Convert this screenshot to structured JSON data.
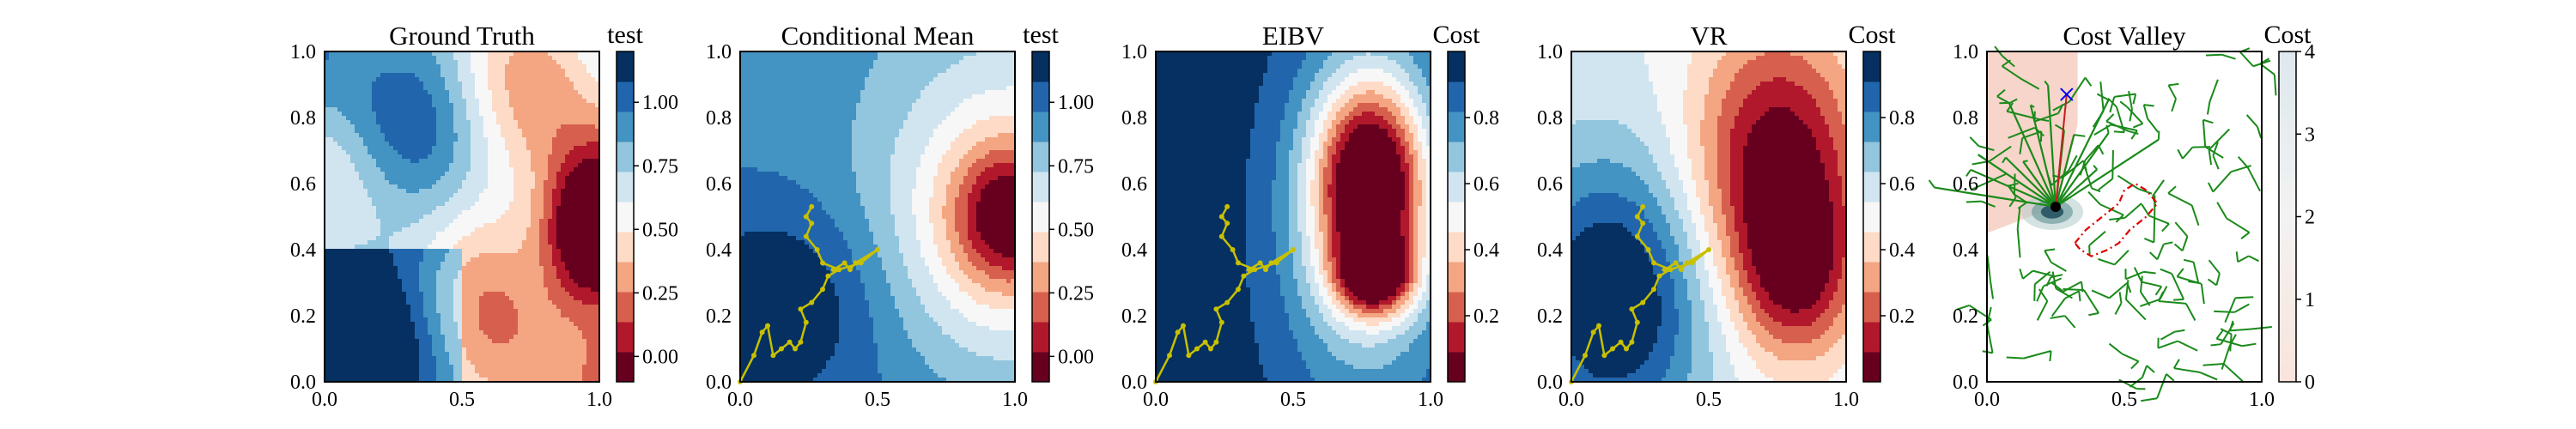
{
  "figure": {
    "description_note": ""
  },
  "colors": {
    "rdbu": [
      "#67001f",
      "#b2182b",
      "#d6604d",
      "#f4a582",
      "#fddbc7",
      "#f7f7f7",
      "#d1e5f0",
      "#92c5de",
      "#4393c3",
      "#2166ac",
      "#053061"
    ],
    "path_color": "#c8c000",
    "tree_color": "#1a8a1a",
    "red_path": "#e00000",
    "blue_marker": "#0000ff",
    "valley_shade": "#f4c7b8"
  },
  "chart_data": [
    {
      "type": "heatmap",
      "title": "Ground Truth",
      "colorbar_label": "test",
      "xlim": [
        0.0,
        1.0
      ],
      "ylim": [
        0.0,
        1.0
      ],
      "xticks": [
        "0.0",
        "0.5",
        "1.0"
      ],
      "yticks": [
        "0.0",
        "0.2",
        "0.4",
        "0.6",
        "0.8",
        "1.0"
      ],
      "clim": [
        -0.1,
        1.2
      ],
      "colorbar_ticks": [
        "0.00",
        "0.25",
        "0.50",
        "0.75",
        "1.00"
      ],
      "colorbar_tick_values": [
        0.0,
        0.25,
        0.5,
        0.75,
        1.0
      ]
    },
    {
      "type": "heatmap",
      "title": "Conditional Mean",
      "colorbar_label": "test",
      "xlim": [
        0.0,
        1.0
      ],
      "ylim": [
        0.0,
        1.0
      ],
      "xticks": [
        "0.0",
        "0.5",
        "1.0"
      ],
      "yticks": [
        "0.0",
        "0.2",
        "0.4",
        "0.6",
        "0.8",
        "1.0"
      ],
      "clim": [
        -0.1,
        1.2
      ],
      "colorbar_ticks": [
        "0.00",
        "0.25",
        "0.50",
        "0.75",
        "1.00"
      ],
      "colorbar_tick_values": [
        0.0,
        0.25,
        0.5,
        0.75,
        1.0
      ],
      "path": [
        [
          0.0,
          0.0
        ],
        [
          0.05,
          0.08
        ],
        [
          0.08,
          0.15
        ],
        [
          0.1,
          0.17
        ],
        [
          0.12,
          0.08
        ],
        [
          0.15,
          0.1
        ],
        [
          0.18,
          0.12
        ],
        [
          0.2,
          0.1
        ],
        [
          0.22,
          0.12
        ],
        [
          0.24,
          0.18
        ],
        [
          0.22,
          0.22
        ],
        [
          0.26,
          0.24
        ],
        [
          0.3,
          0.28
        ],
        [
          0.32,
          0.32
        ],
        [
          0.36,
          0.34
        ],
        [
          0.34,
          0.34
        ],
        [
          0.38,
          0.36
        ],
        [
          0.4,
          0.34
        ],
        [
          0.42,
          0.36
        ],
        [
          0.5,
          0.4
        ],
        [
          0.44,
          0.36
        ],
        [
          0.36,
          0.34
        ],
        [
          0.3,
          0.36
        ],
        [
          0.28,
          0.4
        ],
        [
          0.24,
          0.44
        ],
        [
          0.26,
          0.48
        ],
        [
          0.24,
          0.5
        ],
        [
          0.26,
          0.53
        ]
      ]
    },
    {
      "type": "heatmap",
      "title": "EIBV",
      "colorbar_label": "Cost",
      "xlim": [
        0.0,
        1.0
      ],
      "ylim": [
        0.0,
        1.0
      ],
      "xticks": [
        "0.0",
        "0.5",
        "1.0"
      ],
      "yticks": [
        "0.0",
        "0.2",
        "0.4",
        "0.6",
        "0.8",
        "1.0"
      ],
      "clim": [
        0.0,
        1.0
      ],
      "colorbar_ticks": [
        "0.2",
        "0.4",
        "0.6",
        "0.8"
      ],
      "colorbar_tick_values": [
        0.2,
        0.4,
        0.6,
        0.8
      ],
      "path": [
        [
          0.0,
          0.0
        ],
        [
          0.05,
          0.08
        ],
        [
          0.08,
          0.15
        ],
        [
          0.1,
          0.17
        ],
        [
          0.12,
          0.08
        ],
        [
          0.15,
          0.1
        ],
        [
          0.18,
          0.12
        ],
        [
          0.2,
          0.1
        ],
        [
          0.22,
          0.12
        ],
        [
          0.24,
          0.18
        ],
        [
          0.22,
          0.22
        ],
        [
          0.26,
          0.24
        ],
        [
          0.3,
          0.28
        ],
        [
          0.32,
          0.32
        ],
        [
          0.36,
          0.34
        ],
        [
          0.34,
          0.34
        ],
        [
          0.38,
          0.36
        ],
        [
          0.4,
          0.34
        ],
        [
          0.42,
          0.36
        ],
        [
          0.5,
          0.4
        ],
        [
          0.44,
          0.36
        ],
        [
          0.36,
          0.34
        ],
        [
          0.3,
          0.36
        ],
        [
          0.28,
          0.4
        ],
        [
          0.24,
          0.44
        ],
        [
          0.26,
          0.48
        ],
        [
          0.24,
          0.5
        ],
        [
          0.26,
          0.53
        ]
      ]
    },
    {
      "type": "heatmap",
      "title": "VR",
      "colorbar_label": "Cost",
      "xlim": [
        0.0,
        1.0
      ],
      "ylim": [
        0.0,
        1.0
      ],
      "xticks": [
        "0.0",
        "0.5",
        "1.0"
      ],
      "yticks": [
        "0.0",
        "0.2",
        "0.4",
        "0.6",
        "0.8",
        "1.0"
      ],
      "clim": [
        0.0,
        1.0
      ],
      "colorbar_ticks": [
        "0.2",
        "0.4",
        "0.6",
        "0.8"
      ],
      "colorbar_tick_values": [
        0.2,
        0.4,
        0.6,
        0.8
      ],
      "path": [
        [
          0.0,
          0.0
        ],
        [
          0.05,
          0.08
        ],
        [
          0.08,
          0.15
        ],
        [
          0.1,
          0.17
        ],
        [
          0.12,
          0.08
        ],
        [
          0.15,
          0.1
        ],
        [
          0.18,
          0.12
        ],
        [
          0.2,
          0.1
        ],
        [
          0.22,
          0.12
        ],
        [
          0.24,
          0.18
        ],
        [
          0.22,
          0.22
        ],
        [
          0.26,
          0.24
        ],
        [
          0.3,
          0.28
        ],
        [
          0.32,
          0.32
        ],
        [
          0.36,
          0.34
        ],
        [
          0.34,
          0.34
        ],
        [
          0.38,
          0.36
        ],
        [
          0.4,
          0.34
        ],
        [
          0.42,
          0.36
        ],
        [
          0.5,
          0.4
        ],
        [
          0.44,
          0.36
        ],
        [
          0.36,
          0.34
        ],
        [
          0.3,
          0.36
        ],
        [
          0.28,
          0.4
        ],
        [
          0.24,
          0.44
        ],
        [
          0.26,
          0.48
        ],
        [
          0.24,
          0.5
        ],
        [
          0.26,
          0.53
        ]
      ]
    },
    {
      "type": "heatmap",
      "title": "Cost Valley",
      "colorbar_label": "Cost",
      "xlim": [
        0.0,
        1.0
      ],
      "ylim": [
        0.0,
        1.0
      ],
      "xticks": [
        "0.0",
        "0.5",
        "1.0"
      ],
      "yticks": [
        "0.0",
        "0.2",
        "0.4",
        "0.6",
        "0.8",
        "1.0"
      ],
      "clim": [
        0.0,
        4.0
      ],
      "colorbar_ticks": [
        "0",
        "1",
        "2",
        "3",
        "4"
      ],
      "colorbar_tick_values": [
        0,
        1,
        2,
        3,
        4
      ],
      "current_location": [
        0.25,
        0.53
      ],
      "target_location": [
        0.29,
        0.87
      ],
      "red_route": [
        [
          0.32,
          0.42
        ],
        [
          0.36,
          0.46
        ],
        [
          0.42,
          0.5
        ],
        [
          0.48,
          0.54
        ],
        [
          0.5,
          0.58
        ],
        [
          0.54,
          0.6
        ],
        [
          0.58,
          0.58
        ],
        [
          0.62,
          0.54
        ],
        [
          0.58,
          0.5
        ],
        [
          0.52,
          0.46
        ],
        [
          0.48,
          0.42
        ],
        [
          0.44,
          0.4
        ],
        [
          0.38,
          0.38
        ],
        [
          0.34,
          0.4
        ],
        [
          0.32,
          0.42
        ]
      ]
    }
  ]
}
